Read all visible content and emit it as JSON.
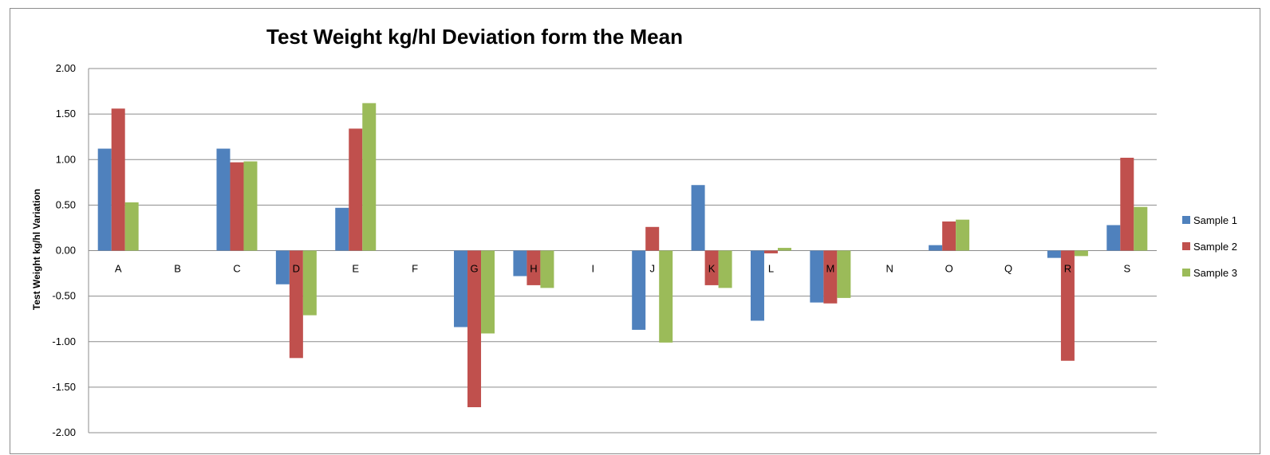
{
  "chart_data": {
    "type": "bar",
    "title": "Test Weight kg/hl Deviation form the Mean",
    "xlabel": "",
    "ylabel": "Test Weight kg/hl Variation",
    "ylim": [
      -2.0,
      2.0
    ],
    "yticks": [
      "2.00",
      "1.50",
      "1.00",
      "0.50",
      "0.00",
      "-0.50",
      "-1.00",
      "-1.50",
      "-2.00"
    ],
    "ytick_values": [
      2.0,
      1.5,
      1.0,
      0.5,
      0.0,
      -0.5,
      -1.0,
      -1.5,
      -2.0
    ],
    "grid": true,
    "legend_position": "right",
    "categories": [
      "A",
      "B",
      "C",
      "D",
      "E",
      "F",
      "G",
      "H",
      "I",
      "J",
      "K",
      "L",
      "M",
      "N",
      "O",
      "Q",
      "R",
      "S"
    ],
    "series": [
      {
        "name": "Sample 1",
        "color": "#4f81bd",
        "values": [
          1.12,
          0,
          1.12,
          -0.37,
          0.47,
          0,
          -0.84,
          -0.28,
          0,
          -0.87,
          0.72,
          -0.77,
          -0.57,
          0,
          0.06,
          0,
          -0.08,
          0.28
        ]
      },
      {
        "name": "Sample 2",
        "color": "#c0504d",
        "values": [
          1.56,
          0,
          0.97,
          -1.18,
          1.34,
          0,
          -1.72,
          -0.38,
          0,
          0.26,
          -0.38,
          -0.03,
          -0.58,
          0,
          0.32,
          0,
          -1.21,
          1.02
        ]
      },
      {
        "name": "Sample 3",
        "color": "#9bbb59",
        "values": [
          0.53,
          0,
          0.98,
          -0.71,
          1.62,
          0,
          -0.91,
          -0.41,
          0,
          -1.01,
          -0.41,
          0.03,
          -0.52,
          0,
          0.34,
          0,
          -0.06,
          0.48
        ]
      }
    ]
  }
}
